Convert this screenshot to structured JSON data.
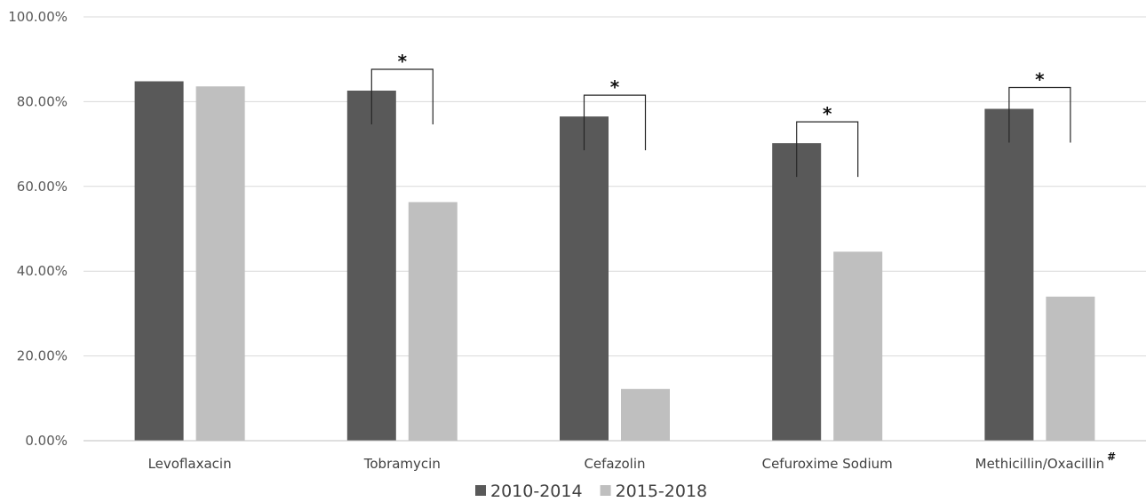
{
  "chart_data": {
    "type": "bar",
    "categories": [
      "Levoflaxacin",
      "Tobramycin",
      "Cefazolin",
      "Cefuroxime Sodium",
      "Methicillin/Oxacillin"
    ],
    "category_notes": [
      "",
      "",
      "",
      "",
      "#"
    ],
    "series": [
      {
        "name": "2010-2014",
        "values": [
          84.8,
          82.6,
          76.5,
          70.2,
          78.3
        ]
      },
      {
        "name": "2015-2018",
        "values": [
          83.6,
          56.3,
          12.2,
          44.6,
          34.0
        ]
      }
    ],
    "ylim": [
      0,
      100
    ],
    "yticks": [
      0,
      20,
      40,
      60,
      80,
      100
    ],
    "ytick_labels": [
      "0.00%",
      "20.00%",
      "40.00%",
      "60.00%",
      "80.00%",
      "100.00%"
    ],
    "significance": [
      "",
      "*",
      "*",
      "*",
      "*"
    ],
    "title": "",
    "xlabel": "",
    "ylabel": "",
    "grid": true,
    "legend_position": "bottom",
    "colors": {
      "series": [
        "#595959",
        "#bfbfbf"
      ],
      "grid": "#d9d9d9",
      "axis": "#bfbfbf",
      "bracket": "#262626"
    }
  }
}
